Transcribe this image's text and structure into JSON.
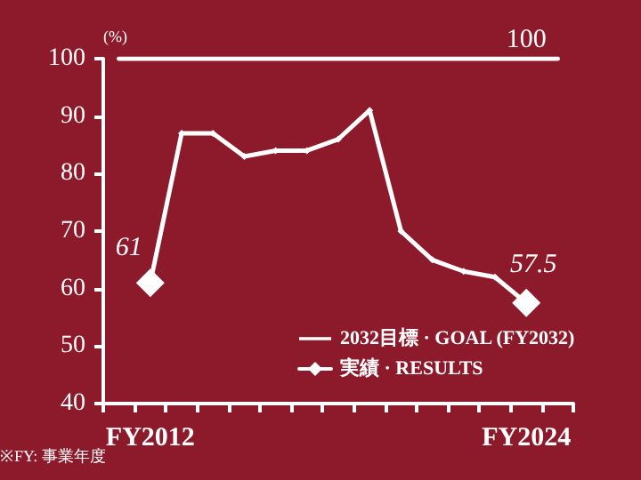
{
  "chart_data": {
    "type": "line",
    "ylabel": "(%)",
    "categories": [
      null,
      "FY2012",
      null,
      null,
      null,
      null,
      null,
      null,
      null,
      null,
      null,
      null,
      null,
      "FY2024",
      null
    ],
    "series": [
      {
        "name": "2032目標 · GOAL (FY2032)",
        "color": "#ffffff",
        "marker": "none",
        "values": [
          100,
          100,
          100,
          100,
          100,
          100,
          100,
          100,
          100,
          100,
          100,
          100,
          100,
          100,
          100
        ],
        "value_labels": [
          null,
          null,
          null,
          null,
          null,
          null,
          null,
          null,
          null,
          null,
          null,
          null,
          null,
          "100",
          null
        ]
      },
      {
        "name": "実績 · RESULTS",
        "color": "#ffffff",
        "marker": "diamond",
        "values": [
          null,
          61,
          87,
          87,
          83,
          84,
          84,
          86,
          91,
          70,
          65,
          63,
          62,
          57.5,
          null
        ],
        "value_labels": [
          null,
          "61",
          null,
          null,
          null,
          null,
          null,
          null,
          null,
          null,
          null,
          null,
          null,
          "57.5",
          null
        ]
      }
    ],
    "ylim": [
      40,
      100
    ],
    "yticks": [
      40,
      50,
      60,
      70,
      80,
      90,
      100
    ],
    "grid": false,
    "legend": "bottom right",
    "annotations": [
      "※FY: 事業年度"
    ]
  }
}
